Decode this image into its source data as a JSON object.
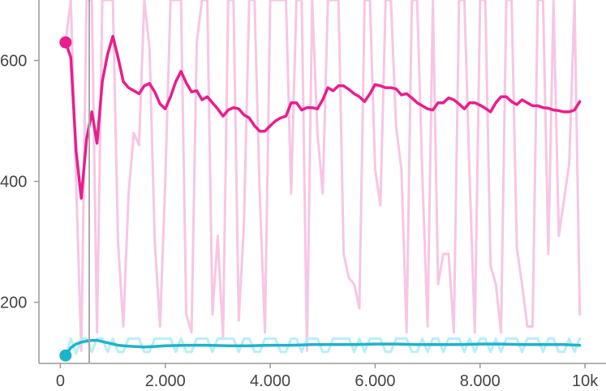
{
  "chart_data": {
    "type": "line",
    "title": "",
    "xlabel": "",
    "ylabel": "",
    "xlim": [
      -1150,
      10400
    ],
    "ylim": [
      60,
      700
    ],
    "grid": false,
    "legend": "none",
    "x_ticks": [
      0,
      2000,
      4000,
      6000,
      8000,
      10000
    ],
    "x_tick_labels": [
      "0",
      "2.000",
      "4.000",
      "6.000",
      "8.000",
      "10k"
    ],
    "y_ticks": [
      200,
      400,
      600
    ],
    "y_tick_labels": [
      "200",
      "400",
      "600"
    ],
    "colors": {
      "series_a": "#e91e8c",
      "series_a_raw": "#f7c6e3",
      "series_b": "#1fb3c9",
      "series_b_raw": "#b9eef6",
      "axis": "#999999",
      "zero_line": "#aaaaaa"
    },
    "series": [
      {
        "role": "smoothed",
        "color": "#e91e8c",
        "x": [
          100,
          200,
          300,
          400,
          500,
          600,
          700,
          800,
          900,
          1000,
          1100,
          1200,
          1300,
          1400,
          1500,
          1600,
          1700,
          1800,
          1900,
          2000,
          2100,
          2200,
          2300,
          2400,
          2500,
          2600,
          2700,
          2800,
          2900,
          3000,
          3100,
          3200,
          3300,
          3400,
          3500,
          3600,
          3700,
          3800,
          3900,
          4000,
          4100,
          4200,
          4300,
          4400,
          4500,
          4600,
          4700,
          4800,
          4900,
          5000,
          5100,
          5200,
          5300,
          5400,
          5500,
          5600,
          5700,
          5800,
          5900,
          6000,
          6100,
          6200,
          6300,
          6400,
          6500,
          6600,
          6700,
          6800,
          6900,
          7000,
          7100,
          7200,
          7300,
          7400,
          7500,
          7600,
          7700,
          7800,
          7900,
          8000,
          8100,
          8200,
          8300,
          8400,
          8500,
          8600,
          8700,
          8800,
          8900,
          9000,
          9100,
          9200,
          9300,
          9400,
          9500,
          9600,
          9700,
          9800,
          9900
        ],
        "y": [
          630,
          605,
          450,
          372,
          470,
          515,
          463,
          565,
          610,
          640,
          605,
          565,
          555,
          550,
          545,
          558,
          562,
          548,
          528,
          520,
          540,
          565,
          582,
          563,
          548,
          550,
          535,
          540,
          530,
          520,
          508,
          518,
          522,
          520,
          510,
          505,
          492,
          483,
          483,
          492,
          500,
          505,
          508,
          530,
          530,
          518,
          522,
          522,
          520,
          535,
          555,
          550,
          558,
          558,
          552,
          545,
          540,
          532,
          545,
          560,
          558,
          555,
          555,
          553,
          543,
          545,
          538,
          530,
          525,
          520,
          518,
          530,
          530,
          538,
          535,
          528,
          520,
          530,
          530,
          526,
          521,
          515,
          530,
          540,
          540,
          532,
          527,
          535,
          530,
          525,
          525,
          522,
          521,
          518,
          517,
          515,
          515,
          518,
          532
        ]
      },
      {
        "role": "raw",
        "color": "#f7c6e3",
        "x": [
          100,
          200,
          300,
          400,
          500,
          600,
          700,
          800,
          900,
          1000,
          1100,
          1200,
          1300,
          1400,
          1500,
          1600,
          1700,
          1800,
          1900,
          2000,
          2100,
          2200,
          2300,
          2400,
          2500,
          2600,
          2700,
          2800,
          2900,
          3000,
          3100,
          3200,
          3300,
          3400,
          3500,
          3600,
          3700,
          3800,
          3900,
          4000,
          4100,
          4200,
          4300,
          4400,
          4500,
          4600,
          4700,
          4800,
          4900,
          5000,
          5100,
          5200,
          5300,
          5400,
          5500,
          5600,
          5700,
          5800,
          5900,
          6000,
          6100,
          6200,
          6300,
          6400,
          6500,
          6600,
          6700,
          6800,
          6900,
          7000,
          7100,
          7200,
          7300,
          7400,
          7500,
          7600,
          7700,
          7800,
          7900,
          8000,
          8100,
          8200,
          8300,
          8400,
          8500,
          8600,
          8700,
          8800,
          8900,
          9000,
          9100,
          9200,
          9300,
          9400,
          9500,
          9600,
          9700,
          9800,
          9900
        ],
        "y": [
          630,
          700,
          400,
          120,
          700,
          700,
          150,
          700,
          700,
          700,
          300,
          160,
          380,
          480,
          460,
          700,
          620,
          300,
          160,
          400,
          700,
          700,
          700,
          180,
          150,
          630,
          700,
          700,
          180,
          310,
          140,
          700,
          700,
          170,
          330,
          700,
          700,
          380,
          150,
          700,
          700,
          700,
          700,
          380,
          700,
          700,
          120,
          700,
          480,
          380,
          700,
          700,
          700,
          280,
          240,
          230,
          190,
          700,
          700,
          420,
          360,
          700,
          700,
          490,
          420,
          150,
          700,
          700,
          410,
          160,
          700,
          230,
          280,
          280,
          150,
          700,
          700,
          410,
          150,
          700,
          700,
          260,
          230,
          150,
          700,
          700,
          290,
          230,
          160,
          160,
          700,
          700,
          280,
          700,
          310,
          370,
          430,
          700,
          180
        ]
      },
      {
        "role": "smoothed",
        "color": "#1fb3c9",
        "x": [
          100,
          200,
          300,
          400,
          500,
          600,
          700,
          800,
          900,
          1000,
          1100,
          1200,
          1400,
          1600,
          1800,
          2000,
          2400,
          2800,
          3200,
          3600,
          4000,
          4400,
          4800,
          5200,
          5600,
          6000,
          6400,
          6800,
          7200,
          7600,
          8000,
          8400,
          8800,
          9200,
          9600,
          9900
        ],
        "y": [
          112,
          125,
          131,
          134,
          136,
          137,
          137,
          135,
          133,
          131,
          129,
          128,
          127,
          126,
          127,
          128,
          129,
          129,
          128,
          128,
          129,
          129,
          130,
          130,
          130,
          131,
          131,
          130,
          130,
          130,
          131,
          131,
          130,
          130,
          130,
          129
        ]
      },
      {
        "role": "raw",
        "color": "#b9eef6",
        "x": [
          100,
          200,
          300,
          400,
          500,
          600,
          700,
          800,
          900,
          1000,
          1100,
          1200,
          1300,
          1400,
          1500,
          1600,
          1700,
          1800,
          1900,
          2000,
          2100,
          2200,
          2300,
          2400,
          2500,
          2600,
          2700,
          2800,
          2900,
          3000,
          3100,
          3200,
          3300,
          3400,
          3500,
          3600,
          3700,
          3800,
          3900,
          4000,
          4100,
          4200,
          4300,
          4400,
          4500,
          4600,
          4700,
          4800,
          4900,
          5000,
          5100,
          5200,
          5300,
          5400,
          5500,
          5600,
          5700,
          5800,
          5900,
          6000,
          6100,
          6200,
          6300,
          6400,
          6500,
          6600,
          6700,
          6800,
          6900,
          7000,
          7100,
          7200,
          7300,
          7400,
          7500,
          7600,
          7700,
          7800,
          7900,
          8000,
          8100,
          8200,
          8300,
          8400,
          8500,
          8600,
          8700,
          8800,
          8900,
          9000,
          9100,
          9200,
          9300,
          9400,
          9500,
          9600,
          9700,
          9800,
          9900
        ],
        "y": [
          112,
          140,
          115,
          140,
          140,
          118,
          140,
          140,
          118,
          140,
          118,
          118,
          140,
          140,
          140,
          118,
          118,
          140,
          140,
          140,
          140,
          118,
          140,
          118,
          118,
          140,
          140,
          140,
          118,
          140,
          140,
          140,
          140,
          118,
          140,
          140,
          118,
          118,
          140,
          140,
          140,
          118,
          118,
          140,
          140,
          118,
          140,
          140,
          140,
          118,
          118,
          140,
          140,
          140,
          140,
          118,
          140,
          118,
          140,
          140,
          140,
          118,
          118,
          140,
          140,
          140,
          118,
          118,
          140,
          118,
          140,
          140,
          118,
          140,
          140,
          140,
          118,
          140,
          118,
          140,
          140,
          118,
          140,
          118,
          140,
          140,
          140,
          118,
          140,
          140,
          140,
          118,
          140,
          140,
          118,
          118,
          140,
          118,
          140
        ]
      }
    ]
  }
}
